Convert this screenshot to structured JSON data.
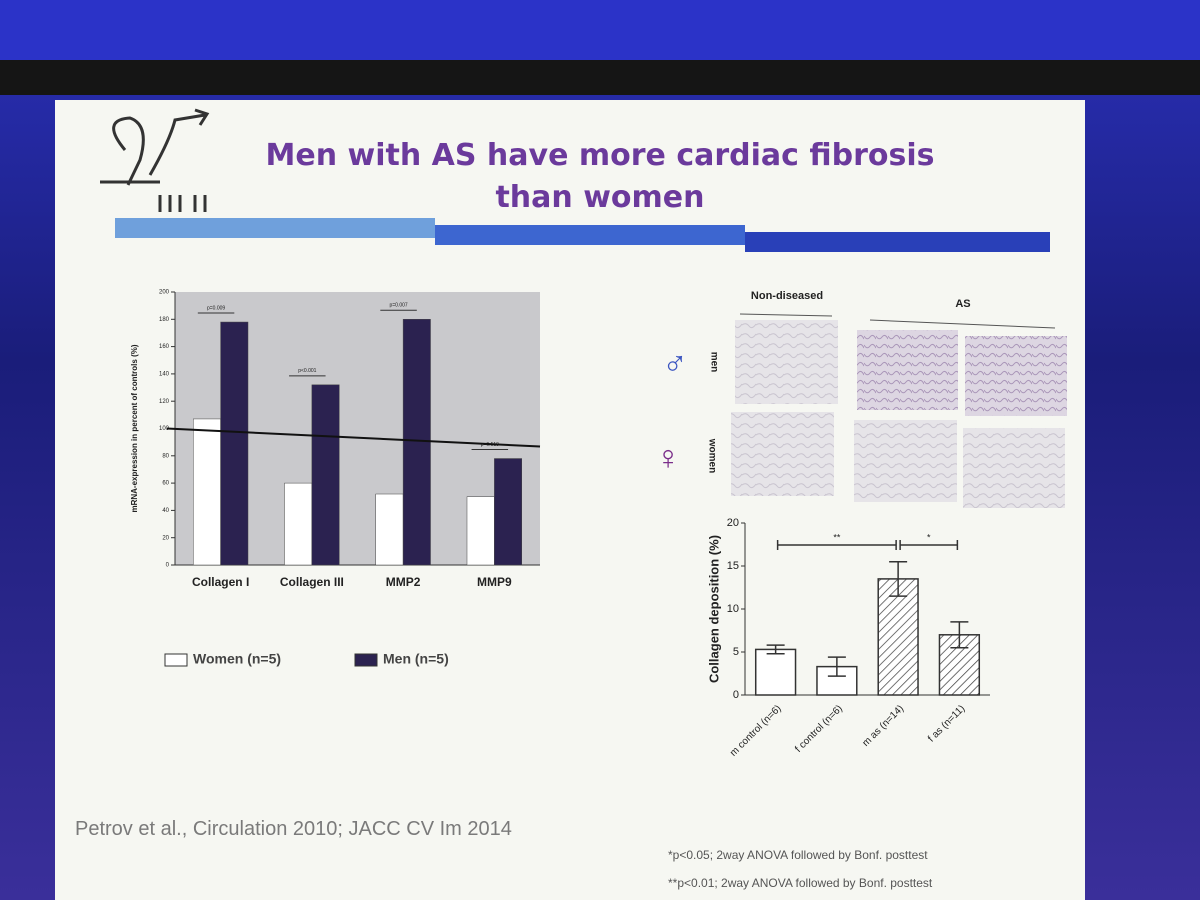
{
  "slide": {
    "title": "Men with AS have more cardiac fibrosis than women",
    "citation": "Petrov et al., Circulation 2010; JACC CV Im 2014",
    "footnotes": [
      "*p<0.05; 2way ANOVA followed by Bonf. posttest",
      "**p<0.01; 2way ANOVA followed by Bonf. posttest"
    ]
  },
  "micrographs": {
    "column_headers": [
      "Non-diseased",
      "AS"
    ],
    "row_labels": [
      "men",
      "women"
    ],
    "row_symbols": [
      "♂",
      "♀"
    ]
  },
  "chart_data": [
    {
      "type": "bar",
      "ylabel": "mRNA-expression in percent of controls (%)",
      "categories": [
        "Collagen I",
        "Collagen III",
        "MMP2",
        "MMP9"
      ],
      "series": [
        {
          "name": "Women (n=5)",
          "color": "#ffffff",
          "values": [
            107,
            60,
            52,
            50
          ]
        },
        {
          "name": "Men (n=5)",
          "color": "#2b2250",
          "values": [
            178,
            132,
            180,
            78
          ]
        }
      ],
      "p_values": [
        "p=0.009",
        "p<0.001",
        "p=0.007",
        "p=0.519"
      ],
      "reference_line": 100,
      "ylim": [
        0,
        200
      ],
      "yticks": [
        0,
        20,
        40,
        60,
        80,
        100,
        120,
        140,
        160,
        180,
        200
      ],
      "plot_background": "#c9c9cc",
      "legend": "bottom"
    },
    {
      "type": "bar",
      "ylabel": "Collagen deposition (%)",
      "categories": [
        "m control (n=6)",
        "f control (n=6)",
        "m as (n=14)",
        "f as (n=11)"
      ],
      "values": [
        5.3,
        3.3,
        13.5,
        7.0
      ],
      "errors": [
        0.5,
        1.1,
        2.0,
        1.5
      ],
      "hatched": [
        false,
        false,
        true,
        true
      ],
      "color": "#ffffff",
      "ylim": [
        0,
        20
      ],
      "yticks": [
        0,
        5,
        10,
        15,
        20
      ],
      "significance": [
        {
          "label": "**",
          "between": [
            "m control (n=6)",
            "m as (n=14)"
          ]
        },
        {
          "label": "*",
          "between": [
            "m as (n=14)",
            "f as (n=11)"
          ]
        }
      ]
    }
  ]
}
